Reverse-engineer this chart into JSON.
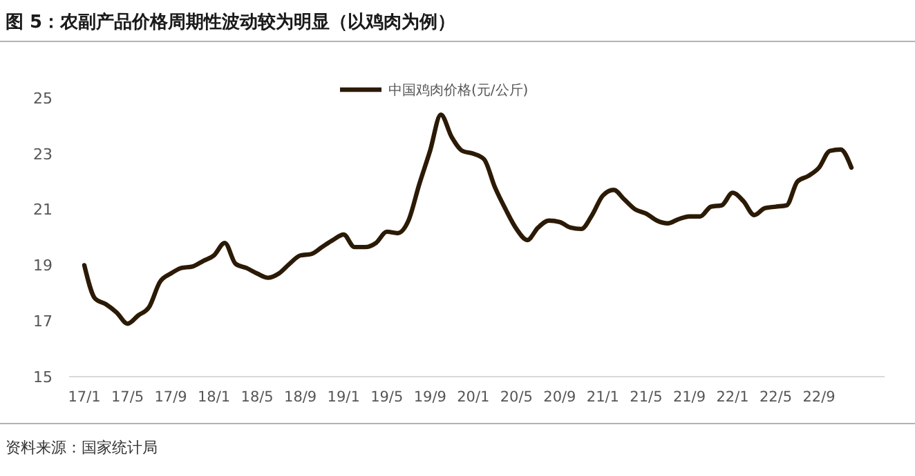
{
  "chart_data": {
    "type": "line",
    "title": "图 5：农副产品价格周期性波动较为明显（以鸡肉为例）",
    "categories": [
      "17/1",
      null,
      null,
      null,
      "17/5",
      null,
      null,
      null,
      "17/9",
      null,
      null,
      null,
      "18/1",
      null,
      null,
      null,
      "18/5",
      null,
      null,
      null,
      "18/9",
      null,
      null,
      null,
      "19/1",
      null,
      null,
      null,
      "19/5",
      null,
      null,
      null,
      "19/9",
      null,
      null,
      null,
      "20/1",
      null,
      null,
      null,
      "20/5",
      null,
      null,
      null,
      "20/9",
      null,
      null,
      null,
      "21/1",
      null,
      null,
      null,
      "21/5",
      null,
      null,
      null,
      "21/9",
      null,
      null,
      null,
      "22/1",
      null,
      null,
      null,
      "22/5",
      null,
      null,
      null,
      "22/9",
      null,
      null,
      null
    ],
    "series": [
      {
        "name": "中国鸡肉价格(元/公斤)",
        "color": "#2b1a05",
        "values": [
          19.0,
          17.8,
          17.6,
          17.3,
          16.9,
          17.2,
          17.5,
          18.4,
          18.7,
          18.9,
          18.95,
          19.15,
          19.35,
          19.8,
          19.05,
          18.9,
          18.7,
          18.55,
          18.7,
          19.05,
          19.35,
          19.4,
          19.65,
          19.9,
          20.1,
          19.65,
          19.65,
          19.8,
          20.2,
          20.15,
          20.6,
          21.9,
          23.1,
          24.4,
          23.6,
          23.1,
          23.0,
          22.8,
          21.8,
          21.0,
          20.3,
          19.9,
          20.35,
          20.6,
          20.55,
          20.35,
          20.3,
          20.8,
          21.5,
          21.7,
          21.35,
          21.0,
          20.85,
          20.6,
          20.5,
          20.65,
          20.75,
          20.75,
          21.1,
          21.15,
          21.6,
          21.3,
          20.8,
          21.05,
          21.1,
          21.15,
          22.0,
          22.2,
          22.5,
          23.1,
          23.15,
          22.5
        ]
      }
    ],
    "ylim": [
      15,
      25
    ],
    "yticks": [
      15,
      17,
      19,
      21,
      23,
      25
    ],
    "grid": false,
    "legend": "top",
    "marker": "none",
    "line_style": "solid",
    "annotations": [
      "资料来源：国家统计局"
    ]
  }
}
